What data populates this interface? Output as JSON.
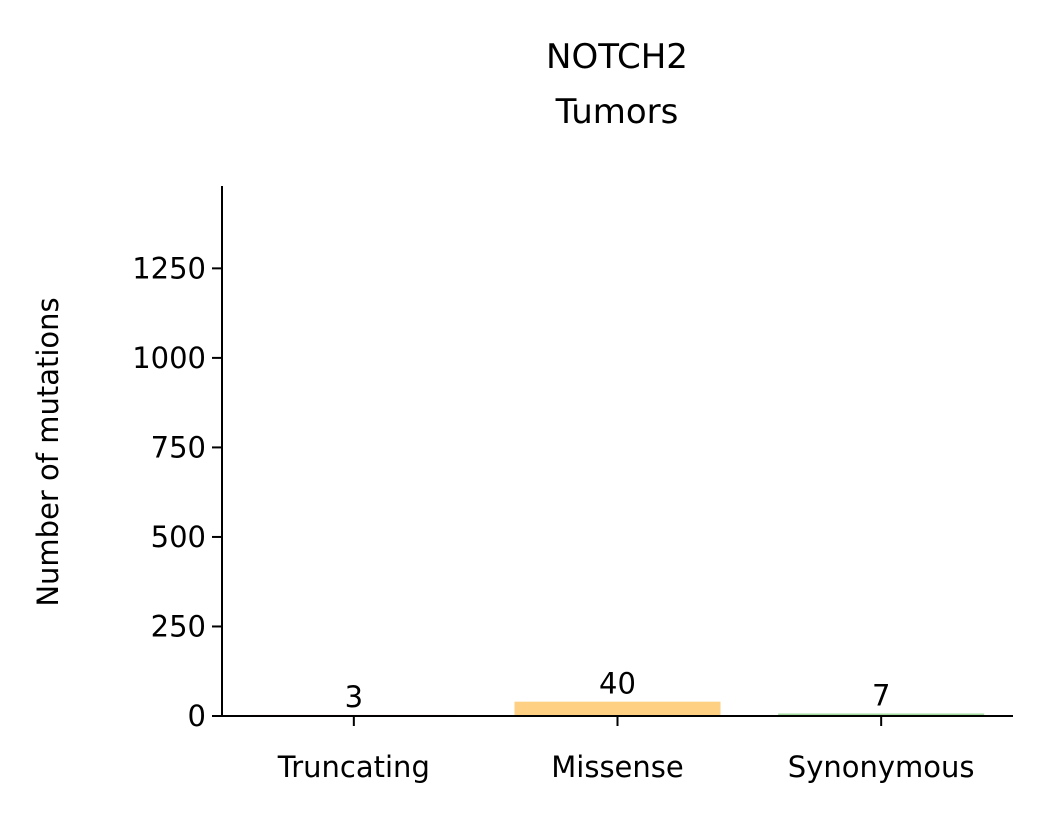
{
  "chart_data": {
    "type": "bar",
    "title_lines": [
      "NOTCH2",
      "Tumors"
    ],
    "xlabel": "",
    "ylabel": "Number of mutations",
    "categories": [
      "Truncating",
      "Missense",
      "Synonymous"
    ],
    "values": [
      3,
      40,
      7
    ],
    "data_labels": [
      "3",
      "40",
      "7"
    ],
    "bar_colors": [
      "#f4a582",
      "#fdd084",
      "#a6dba0"
    ],
    "ylim": [
      0,
      1480
    ],
    "yticks": [
      0,
      250,
      500,
      750,
      1000,
      1250
    ],
    "ytick_labels": [
      "0",
      "250",
      "500",
      "750",
      "1000",
      "1250"
    ],
    "grid": false,
    "legend": "none"
  }
}
